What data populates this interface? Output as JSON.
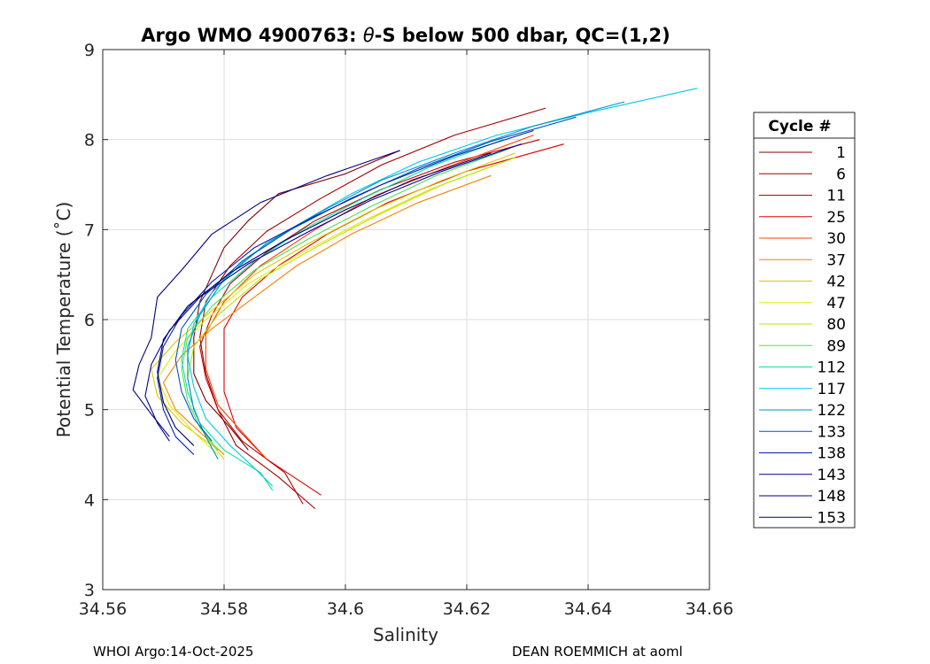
{
  "chart_data": {
    "type": "line",
    "title_prefix": "Argo WMO 4900763: ",
    "title_theta": "θ",
    "title_suffix": "-S below 500 dbar,  QC=(1,2)",
    "xlabel": "Salinity",
    "ylabel": "Potential Temperature (˚C)",
    "xlim": [
      34.56,
      34.66
    ],
    "ylim": [
      3,
      9
    ],
    "x_ticks": [
      34.56,
      34.58,
      34.6,
      34.62,
      34.64,
      34.66
    ],
    "x_tick_labels": [
      "34.56",
      "34.58",
      "34.6",
      "34.62",
      "34.64",
      "34.66"
    ],
    "y_ticks": [
      3,
      4,
      5,
      6,
      7,
      8,
      9
    ],
    "y_tick_labels": [
      "3",
      "4",
      "5",
      "6",
      "7",
      "8",
      "9"
    ],
    "grid": true,
    "legend_title": "Cycle #",
    "legend_position": "right",
    "series": [
      {
        "name": "1",
        "color": "#800000",
        "points": [
          [
            34.609,
            7.88
          ],
          [
            34.6,
            7.62
          ],
          [
            34.589,
            7.4
          ],
          [
            34.584,
            7.1
          ],
          [
            34.58,
            6.8
          ],
          [
            34.578,
            6.5
          ],
          [
            34.576,
            6.2
          ],
          [
            34.575,
            5.8
          ],
          [
            34.575,
            5.4
          ],
          [
            34.577,
            5.1
          ],
          [
            34.581,
            4.8
          ],
          [
            34.584,
            4.55
          ]
        ]
      },
      {
        "name": "6",
        "color": "#a00000",
        "points": [
          [
            34.633,
            8.35
          ],
          [
            34.618,
            8.05
          ],
          [
            34.606,
            7.72
          ],
          [
            34.596,
            7.35
          ],
          [
            34.587,
            6.98
          ],
          [
            34.581,
            6.6
          ],
          [
            34.577,
            6.2
          ],
          [
            34.576,
            5.8
          ],
          [
            34.577,
            5.4
          ],
          [
            34.579,
            5.0
          ],
          [
            34.582,
            4.6
          ],
          [
            34.589,
            4.25
          ],
          [
            34.595,
            3.9
          ]
        ]
      },
      {
        "name": "11",
        "color": "#c00000",
        "points": [
          [
            34.632,
            8.0
          ],
          [
            34.618,
            7.75
          ],
          [
            34.606,
            7.45
          ],
          [
            34.595,
            7.1
          ],
          [
            34.587,
            6.75
          ],
          [
            34.581,
            6.4
          ],
          [
            34.578,
            6.05
          ],
          [
            34.576,
            5.7
          ],
          [
            34.577,
            5.35
          ],
          [
            34.579,
            5.0
          ],
          [
            34.583,
            4.65
          ],
          [
            34.59,
            4.3
          ],
          [
            34.593,
            3.95
          ]
        ]
      },
      {
        "name": "25",
        "color": "#e00000",
        "points": [
          [
            34.636,
            7.95
          ],
          [
            34.62,
            7.65
          ],
          [
            34.607,
            7.3
          ],
          [
            34.597,
            6.95
          ],
          [
            34.589,
            6.6
          ],
          [
            34.583,
            6.25
          ],
          [
            34.58,
            5.9
          ],
          [
            34.58,
            5.55
          ],
          [
            34.58,
            5.2
          ],
          [
            34.582,
            4.8
          ],
          [
            34.587,
            4.45
          ],
          [
            34.596,
            4.05
          ]
        ]
      },
      {
        "name": "30",
        "color": "#ff4000",
        "points": [
          [
            34.631,
            8.05
          ],
          [
            34.617,
            7.7
          ],
          [
            34.605,
            7.38
          ],
          [
            34.595,
            7.0
          ],
          [
            34.586,
            6.6
          ],
          [
            34.58,
            6.2
          ],
          [
            34.577,
            5.85
          ],
          [
            34.577,
            5.45
          ],
          [
            34.579,
            5.05
          ],
          [
            34.583,
            4.75
          ],
          [
            34.587,
            4.45
          ]
        ]
      },
      {
        "name": "37",
        "color": "#ff8000",
        "points": [
          [
            34.624,
            7.6
          ],
          [
            34.612,
            7.3
          ],
          [
            34.601,
            6.95
          ],
          [
            34.592,
            6.6
          ],
          [
            34.585,
            6.25
          ],
          [
            34.578,
            5.9
          ],
          [
            34.573,
            5.6
          ],
          [
            34.57,
            5.3
          ],
          [
            34.572,
            5.0
          ],
          [
            34.576,
            4.75
          ],
          [
            34.58,
            4.5
          ]
        ]
      },
      {
        "name": "42",
        "color": "#dcc800",
        "points": [
          [
            34.628,
            7.85
          ],
          [
            34.616,
            7.55
          ],
          [
            34.604,
            7.2
          ],
          [
            34.594,
            6.85
          ],
          [
            34.585,
            6.5
          ],
          [
            34.578,
            6.1
          ],
          [
            34.572,
            5.75
          ],
          [
            34.568,
            5.45
          ],
          [
            34.569,
            5.15
          ],
          [
            34.573,
            4.85
          ],
          [
            34.578,
            4.6
          ]
        ]
      },
      {
        "name": "47",
        "color": "#e8e800",
        "points": [
          [
            34.626,
            7.75
          ],
          [
            34.614,
            7.45
          ],
          [
            34.603,
            7.1
          ],
          [
            34.593,
            6.75
          ],
          [
            34.584,
            6.4
          ],
          [
            34.577,
            6.0
          ],
          [
            34.572,
            5.65
          ],
          [
            34.569,
            5.35
          ],
          [
            34.571,
            5.05
          ],
          [
            34.575,
            4.75
          ],
          [
            34.579,
            4.5
          ]
        ]
      },
      {
        "name": "80",
        "color": "#b4e800",
        "points": [
          [
            34.628,
            7.8
          ],
          [
            34.616,
            7.5
          ],
          [
            34.605,
            7.15
          ],
          [
            34.595,
            6.8
          ],
          [
            34.586,
            6.45
          ],
          [
            34.579,
            6.05
          ],
          [
            34.575,
            5.7
          ],
          [
            34.574,
            5.35
          ],
          [
            34.575,
            5.0
          ],
          [
            34.577,
            4.7
          ],
          [
            34.58,
            4.45
          ]
        ]
      },
      {
        "name": "89",
        "color": "#50e050",
        "points": [
          [
            34.627,
            7.9
          ],
          [
            34.615,
            7.6
          ],
          [
            34.604,
            7.25
          ],
          [
            34.594,
            6.9
          ],
          [
            34.585,
            6.55
          ],
          [
            34.578,
            6.15
          ],
          [
            34.574,
            5.8
          ],
          [
            34.573,
            5.45
          ],
          [
            34.574,
            5.1
          ],
          [
            34.576,
            4.8
          ],
          [
            34.579,
            4.55
          ]
        ]
      },
      {
        "name": "112",
        "color": "#00e8a0",
        "points": [
          [
            34.626,
            8.0
          ],
          [
            34.614,
            7.7
          ],
          [
            34.603,
            7.35
          ],
          [
            34.593,
            7.0
          ],
          [
            34.585,
            6.65
          ],
          [
            34.578,
            6.25
          ],
          [
            34.574,
            5.9
          ],
          [
            34.573,
            5.55
          ],
          [
            34.574,
            5.2
          ],
          [
            34.576,
            4.85
          ],
          [
            34.58,
            4.55
          ],
          [
            34.586,
            4.3
          ],
          [
            34.588,
            4.1
          ]
        ]
      },
      {
        "name": "117",
        "color": "#00c8e8",
        "points": [
          [
            34.658,
            8.57
          ],
          [
            34.64,
            8.3
          ],
          [
            34.625,
            8.05
          ],
          [
            34.612,
            7.75
          ],
          [
            34.601,
            7.4
          ],
          [
            34.592,
            7.05
          ],
          [
            34.584,
            6.7
          ],
          [
            34.578,
            6.3
          ],
          [
            34.575,
            5.95
          ],
          [
            34.574,
            5.6
          ],
          [
            34.575,
            5.25
          ],
          [
            34.577,
            4.9
          ],
          [
            34.581,
            4.6
          ],
          [
            34.585,
            4.35
          ],
          [
            34.588,
            4.15
          ]
        ]
      },
      {
        "name": "122",
        "color": "#0090d0",
        "points": [
          [
            34.646,
            8.42
          ],
          [
            34.631,
            8.15
          ],
          [
            34.618,
            7.85
          ],
          [
            34.606,
            7.55
          ],
          [
            34.596,
            7.2
          ],
          [
            34.587,
            6.85
          ],
          [
            34.58,
            6.45
          ],
          [
            34.576,
            6.05
          ],
          [
            34.574,
            5.7
          ],
          [
            34.574,
            5.35
          ],
          [
            34.575,
            5.0
          ],
          [
            34.577,
            4.7
          ],
          [
            34.579,
            4.45
          ]
        ]
      },
      {
        "name": "133",
        "color": "#0050c8",
        "points": [
          [
            34.638,
            8.25
          ],
          [
            34.624,
            7.98
          ],
          [
            34.612,
            7.68
          ],
          [
            34.601,
            7.35
          ],
          [
            34.591,
            7.0
          ],
          [
            34.583,
            6.65
          ],
          [
            34.577,
            6.28
          ],
          [
            34.573,
            5.9
          ],
          [
            34.572,
            5.55
          ],
          [
            34.573,
            5.2
          ],
          [
            34.575,
            4.9
          ],
          [
            34.578,
            4.65
          ]
        ]
      },
      {
        "name": "138",
        "color": "#0020b0",
        "points": [
          [
            34.631,
            8.1
          ],
          [
            34.618,
            7.82
          ],
          [
            34.606,
            7.5
          ],
          [
            34.595,
            7.15
          ],
          [
            34.585,
            6.8
          ],
          [
            34.578,
            6.42
          ],
          [
            34.573,
            6.05
          ],
          [
            34.57,
            5.7
          ],
          [
            34.569,
            5.35
          ],
          [
            34.57,
            5.0
          ],
          [
            34.572,
            4.7
          ],
          [
            34.575,
            4.5
          ]
        ]
      },
      {
        "name": "143",
        "color": "#0000a0",
        "points": [
          [
            34.629,
            7.95
          ],
          [
            34.616,
            7.65
          ],
          [
            34.604,
            7.32
          ],
          [
            34.594,
            6.98
          ],
          [
            34.584,
            6.62
          ],
          [
            34.576,
            6.25
          ],
          [
            34.571,
            5.88
          ],
          [
            34.568,
            5.5
          ],
          [
            34.567,
            5.15
          ],
          [
            34.569,
            4.85
          ],
          [
            34.571,
            4.65
          ]
        ]
      },
      {
        "name": "148",
        "color": "#000080",
        "points": [
          [
            34.609,
            7.88
          ],
          [
            34.597,
            7.6
          ],
          [
            34.586,
            7.3
          ],
          [
            34.578,
            6.95
          ],
          [
            34.573,
            6.55
          ],
          [
            34.569,
            6.25
          ],
          [
            34.568,
            5.8
          ],
          [
            34.566,
            5.5
          ],
          [
            34.565,
            5.22
          ],
          [
            34.568,
            4.95
          ],
          [
            34.571,
            4.7
          ]
        ]
      },
      {
        "name": "153",
        "color": "#000060",
        "points": [
          [
            34.624,
            7.85
          ],
          [
            34.611,
            7.55
          ],
          [
            34.6,
            7.22
          ],
          [
            34.59,
            6.88
          ],
          [
            34.581,
            6.52
          ],
          [
            34.574,
            6.15
          ],
          [
            34.57,
            5.78
          ],
          [
            34.569,
            5.42
          ],
          [
            34.57,
            5.08
          ],
          [
            34.572,
            4.8
          ],
          [
            34.575,
            4.6
          ]
        ]
      }
    ]
  },
  "footer": {
    "left": "WHOI Argo:14-Oct-2025",
    "right": "DEAN ROEMMICH at aoml"
  }
}
